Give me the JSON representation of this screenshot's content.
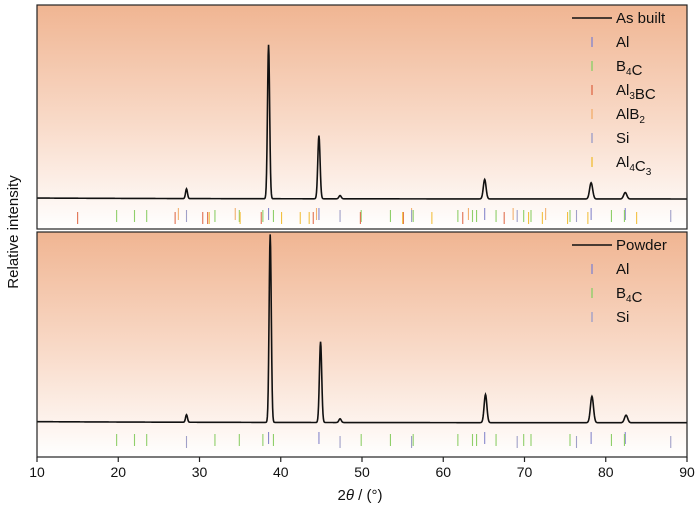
{
  "chart_data": [
    {
      "type": "line",
      "panel": "top",
      "xlim": [
        10,
        90
      ],
      "x_ticks": [
        10,
        20,
        30,
        40,
        50,
        60,
        70,
        80,
        90
      ],
      "background": "gradient: salmon at top fading to white",
      "series": [
        {
          "name": "As built",
          "color": "#111111",
          "baseline": 0.12,
          "peaks": [
            {
              "x": 28.4,
              "h": 0.06
            },
            {
              "x": 38.5,
              "h": 0.95
            },
            {
              "x": 44.7,
              "h": 0.39
            },
            {
              "x": 47.3,
              "h": 0.02
            },
            {
              "x": 65.1,
              "h": 0.12
            },
            {
              "x": 78.2,
              "h": 0.1
            },
            {
              "x": 82.4,
              "h": 0.04
            }
          ]
        }
      ],
      "reference_phases": [
        {
          "label": "Al",
          "sub": "",
          "label2": "",
          "sub2": "",
          "color": "#8888cc",
          "positions": [
            38.5,
            44.7,
            65.1,
            78.2,
            82.4
          ]
        },
        {
          "label": "B",
          "sub": "4",
          "label2": "C",
          "sub2": "",
          "color": "#8fcf6a",
          "positions": [
            19.8,
            22.0,
            23.5,
            31.9,
            34.9,
            37.8,
            39.1,
            49.9,
            53.5,
            56.3,
            61.8,
            63.6,
            64.1,
            66.5,
            69.9,
            70.8,
            75.6,
            80.7,
            82.3
          ]
        },
        {
          "label": "Al",
          "sub": "3",
          "label2": "BC",
          "sub2": "",
          "color": "#e07050",
          "positions": [
            15.0,
            27.0,
            30.4,
            31.0,
            37.6,
            44.0,
            49.8,
            55.1,
            62.4,
            67.5
          ]
        },
        {
          "label": "AlB",
          "sub": "2",
          "label2": "",
          "sub2": "",
          "color": "#f2b070",
          "positions": [
            27.4,
            34.4,
            44.4,
            56.1,
            63.1,
            68.6,
            72.6
          ]
        },
        {
          "label": "Si",
          "sub": "",
          "label2": "",
          "sub2": "",
          "color": "#a0a0c8",
          "positions": [
            28.4,
            47.3,
            56.1,
            69.1,
            76.4,
            88.0
          ]
        },
        {
          "label": "Al",
          "sub": "4",
          "label2": "C",
          "sub2": "3",
          "color": "#f2c040",
          "positions": [
            31.2,
            35.0,
            40.1,
            42.4,
            43.5,
            55.0,
            58.6,
            70.5,
            72.2,
            75.3,
            77.8,
            83.8
          ]
        }
      ]
    },
    {
      "type": "line",
      "panel": "bottom",
      "xlim": [
        10,
        90
      ],
      "x_ticks": [
        10,
        20,
        30,
        40,
        50,
        60,
        70,
        80,
        90
      ],
      "background": "gradient: salmon at top fading to white",
      "series": [
        {
          "name": "Powder",
          "color": "#111111",
          "baseline": 0.13,
          "peaks": [
            {
              "x": 28.4,
              "h": 0.04
            },
            {
              "x": 38.7,
              "h": 1.0
            },
            {
              "x": 44.9,
              "h": 0.43
            },
            {
              "x": 47.3,
              "h": 0.02
            },
            {
              "x": 65.2,
              "h": 0.15
            },
            {
              "x": 78.3,
              "h": 0.14
            },
            {
              "x": 82.5,
              "h": 0.04
            }
          ]
        }
      ],
      "reference_phases": [
        {
          "label": "Al",
          "sub": "",
          "label2": "",
          "sub2": "",
          "color": "#8888cc",
          "positions": [
            38.5,
            44.7,
            65.1,
            78.2,
            82.4
          ]
        },
        {
          "label": "B",
          "sub": "4",
          "label2": "C",
          "sub2": "",
          "color": "#8fcf6a",
          "positions": [
            19.8,
            22.0,
            23.5,
            31.9,
            34.9,
            37.8,
            39.1,
            49.9,
            53.5,
            56.3,
            61.8,
            63.6,
            64.1,
            66.5,
            69.9,
            70.8,
            75.6,
            80.7,
            82.3
          ]
        },
        {
          "label": "Si",
          "sub": "",
          "label2": "",
          "sub2": "",
          "color": "#a0a0c8",
          "positions": [
            28.4,
            47.3,
            56.1,
            69.1,
            76.4,
            88.0
          ]
        }
      ]
    }
  ],
  "axes": {
    "ylabel": "Relative intensity",
    "xlabel_prefix": "2",
    "xlabel_theta": "θ",
    "xlabel_suffix": " / (°)"
  }
}
